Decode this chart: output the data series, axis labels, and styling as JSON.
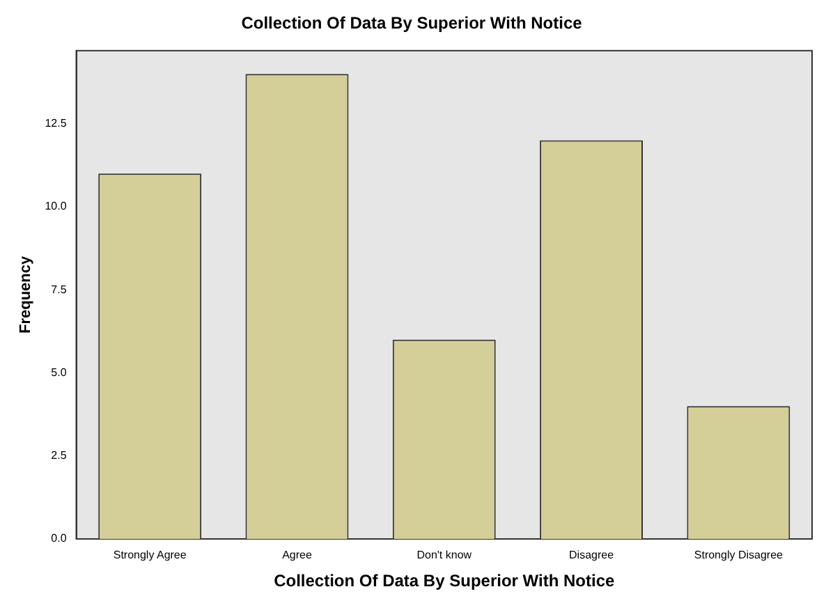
{
  "chart_data": {
    "type": "bar",
    "title": "Collection Of Data By Superior With Notice",
    "xlabel": "Collection Of Data By Superior With Notice",
    "ylabel": "Frequency",
    "categories": [
      "Strongly Agree",
      "Agree",
      "Don't know",
      "Disagree",
      "Strongly Disagree"
    ],
    "values": [
      11,
      14,
      6,
      12,
      4
    ],
    "color": "#d4cf98",
    "ylim": [
      0,
      14.7
    ],
    "yticks": [
      {
        "value": 0,
        "label": "0.0"
      },
      {
        "value": 2.5,
        "label": "2.5"
      },
      {
        "value": 5,
        "label": "5.0"
      },
      {
        "value": 7.5,
        "label": "7.5"
      },
      {
        "value": 10,
        "label": "10.0"
      },
      {
        "value": 12.5,
        "label": "12.5"
      }
    ],
    "grid": false,
    "legend": false
  }
}
